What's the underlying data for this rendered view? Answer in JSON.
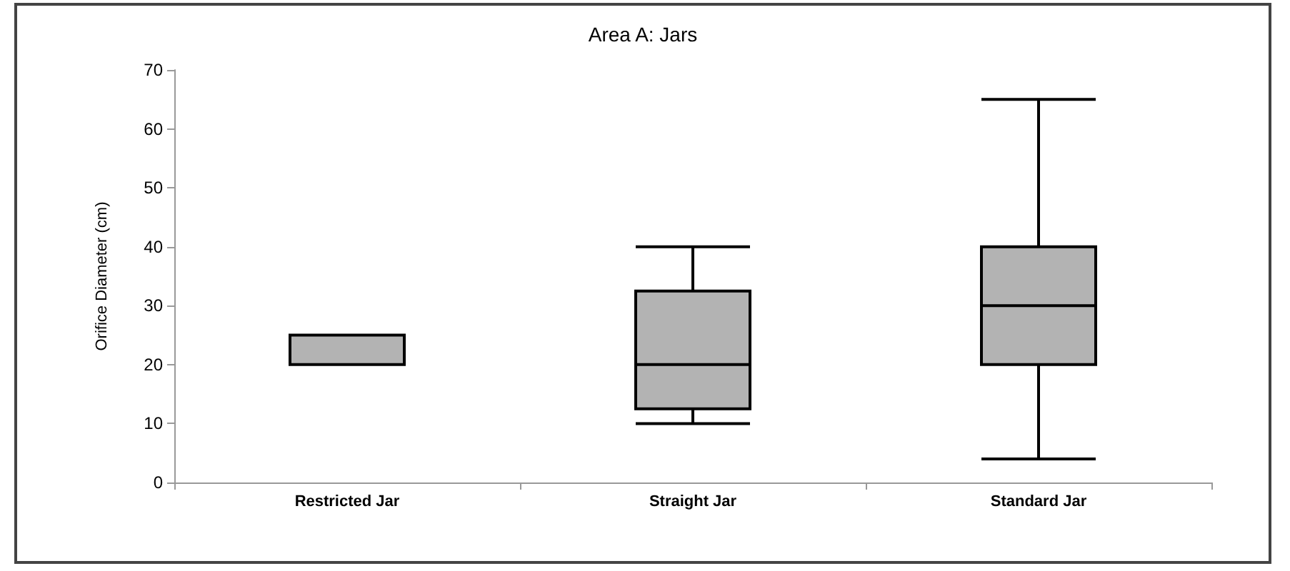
{
  "chart_data": {
    "type": "box",
    "title": "Area A: Jars",
    "ylabel": "Orifice Diameter (cm)",
    "categories": [
      "Restricted Jar",
      "Straight Jar",
      "Standard Jar"
    ],
    "color": "#b3b3b3",
    "boxes": [
      {
        "low": 20,
        "q1": 20,
        "median": 20,
        "q3": 25,
        "high": 25
      },
      {
        "low": 10,
        "q1": 12.5,
        "median": 20,
        "q3": 32.5,
        "high": 40
      },
      {
        "low": 4,
        "q1": 20,
        "median": 30,
        "q3": 40,
        "high": 65
      }
    ],
    "ylim": [
      0,
      70
    ],
    "yticks": [
      0,
      10,
      20,
      30,
      40,
      50,
      60,
      70
    ],
    "grid": false
  }
}
